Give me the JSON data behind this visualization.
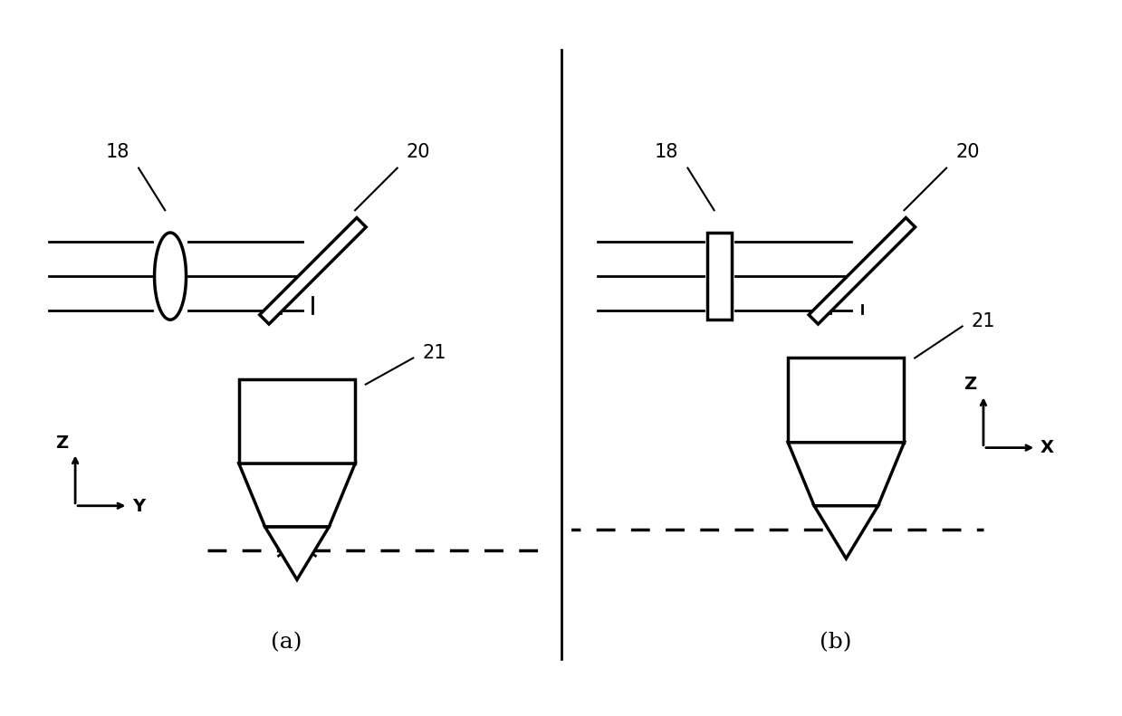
{
  "fig_width": 12.39,
  "fig_height": 7.91,
  "bg_color": "#ffffff",
  "border_color": "#000000",
  "line_color": "#000000",
  "label_a": "(a)",
  "label_b": "(b)",
  "label_18": "18",
  "label_20": "20",
  "label_21": "21"
}
